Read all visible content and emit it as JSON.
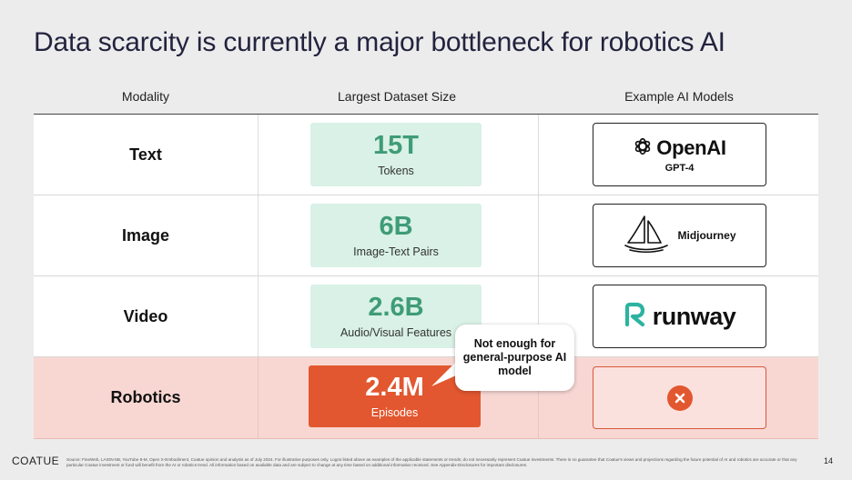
{
  "title": "Data scarcity is currently a major bottleneck for robotics AI",
  "columns": {
    "modality": "Modality",
    "dataset": "Largest Dataset Size",
    "models": "Example AI Models"
  },
  "rows": [
    {
      "modality": "Text",
      "value": "15T",
      "unit": "Tokens",
      "model_logo": "openai-logo",
      "model_name": "OpenAI",
      "model_sub": "GPT-4"
    },
    {
      "modality": "Image",
      "value": "6B",
      "unit": "Image-Text Pairs",
      "model_logo": "midjourney-sailboat-logo",
      "model_name": "Midjourney"
    },
    {
      "modality": "Video",
      "value": "2.6B",
      "unit": "Audio/Visual Features",
      "model_logo": "runway-logo",
      "model_name": "runway"
    },
    {
      "modality": "Robotics",
      "value": "2.4M",
      "unit": "Episodes",
      "model_logo": "x-icon"
    }
  ],
  "callout": "Not enough for general-purpose AI model",
  "footer": {
    "brand": "COATUE",
    "note": "Source: FineWeb, LAION-5B, YouTube 8-M, Open X-Embodiment, Coatue opinion and analysis as of July 2024. For illustrative purposes only. Logos listed above as examples of the applicable statements or trends; do not necessarily represent Coatue investments. There is no guarantee that Coatue's views and projections regarding the future potential of AI and robotics are accurate or that any particular Coatue investment or fund will benefit from the AI or robotics trend. All information based on available data and are subject to change at any time based on additional information received. See Appendix-Disclosures for important disclosures.",
    "page": "14"
  },
  "colors": {
    "green_box": "#d9f1e6",
    "green_text": "#3e9c77",
    "accent_orange": "#e2572f",
    "robotics_row": "#f8d7d3"
  }
}
